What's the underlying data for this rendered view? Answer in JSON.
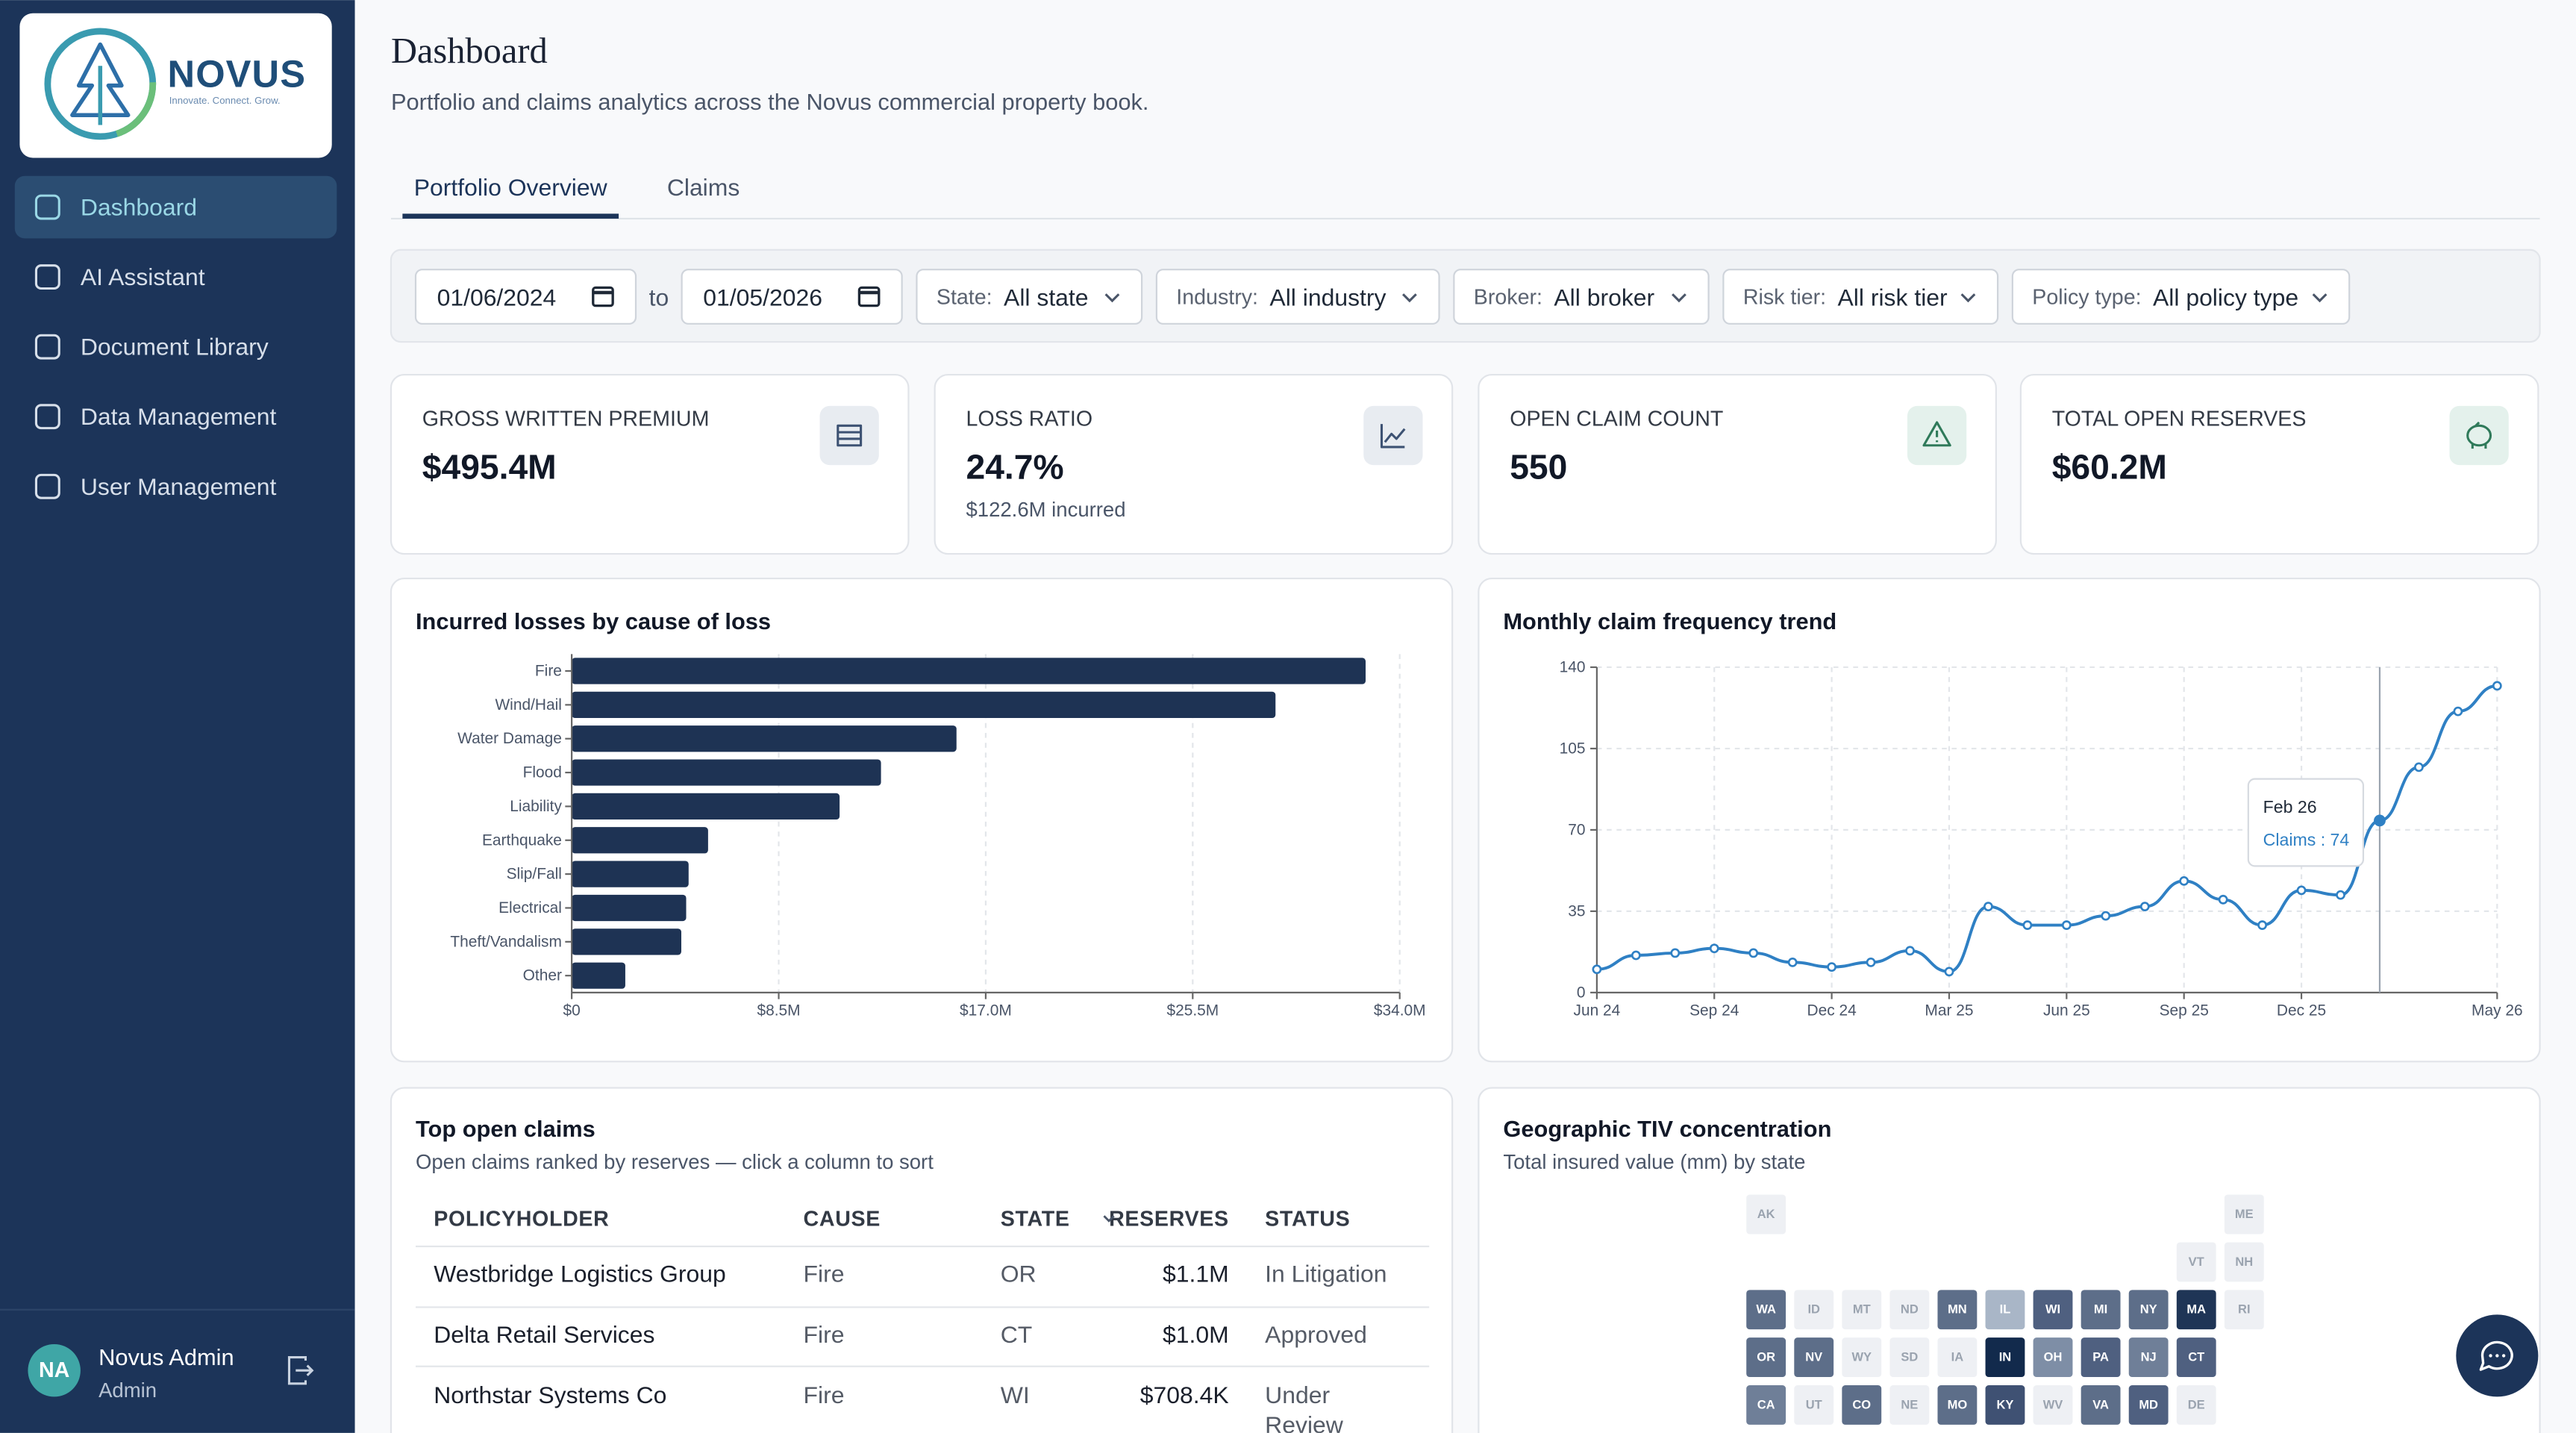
{
  "sidebar": {
    "logo": {
      "name": "NOVUS",
      "tagline": "Innovate. Connect. Grow."
    },
    "nav": [
      "Dashboard",
      "AI Assistant",
      "Document Library",
      "Data Management",
      "User Management"
    ],
    "user": {
      "initials": "NA",
      "name": "Novus Admin",
      "role": "Admin"
    }
  },
  "header": {
    "title": "Dashboard",
    "subtitle": "Portfolio and claims analytics across the Novus commercial property book."
  },
  "tabs": [
    "Portfolio Overview",
    "Claims"
  ],
  "filters": {
    "date_from": "01/06/2024",
    "date_separator": "to",
    "date_to": "01/05/2026",
    "selects": [
      {
        "label": "State:",
        "value": "All state"
      },
      {
        "label": "Industry:",
        "value": "All industry"
      },
      {
        "label": "Broker:",
        "value": "All broker"
      },
      {
        "label": "Risk tier:",
        "value": "All risk tier"
      },
      {
        "label": "Policy type:",
        "value": "All policy type"
      }
    ]
  },
  "kpis": [
    {
      "label": "GROSS WRITTEN PREMIUM",
      "value": "$495.4M"
    },
    {
      "label": "LOSS RATIO",
      "value": "24.7%",
      "note": "$122.6M incurred"
    },
    {
      "label": "OPEN CLAIM COUNT",
      "value": "550"
    },
    {
      "label": "TOTAL OPEN RESERVES",
      "value": "$60.2M"
    }
  ],
  "chart_data": [
    {
      "type": "bar",
      "orientation": "horizontal",
      "title": "Incurred losses by cause of loss",
      "categories": [
        "Fire",
        "Wind/Hail",
        "Water Damage",
        "Flood",
        "Liability",
        "Earthquake",
        "Slip/Fall",
        "Electrical",
        "Theft/Vandalism",
        "Other"
      ],
      "values": [
        32.6,
        28.9,
        15.8,
        12.7,
        11.0,
        5.6,
        4.8,
        4.7,
        4.5,
        2.2
      ],
      "color": "#1e3354",
      "xlim": [
        0,
        34
      ],
      "xticks": [
        {
          "value": 0,
          "label": "$0"
        },
        {
          "value": 8.5,
          "label": "$8.5M"
        },
        {
          "value": 17,
          "label": "$17.0M"
        },
        {
          "value": 25.5,
          "label": "$25.5M"
        },
        {
          "value": 34,
          "label": "$34.0M"
        }
      ],
      "grid": true
    },
    {
      "type": "line",
      "title": "Monthly claim frequency trend",
      "categories": [
        "Jun 24",
        null,
        null,
        "Sep 24",
        null,
        null,
        "Dec 24",
        null,
        null,
        "Mar 25",
        null,
        null,
        "Jun 25",
        null,
        null,
        "Sep 25",
        null,
        null,
        "Dec 25",
        null,
        null,
        null,
        null,
        "May 26"
      ],
      "values": [
        10,
        16,
        17,
        19,
        17,
        13,
        11,
        13,
        18,
        9,
        37,
        29,
        29,
        33,
        37,
        48,
        40,
        29,
        44,
        42,
        74,
        97,
        121,
        132
      ],
      "color": "#2f80c4",
      "ylim": [
        0,
        140
      ],
      "yticks": [
        0,
        35,
        70,
        105,
        140
      ],
      "grid": true,
      "tooltip": {
        "title": "Feb 26",
        "text": "Claims : 74"
      }
    }
  ],
  "claims_table": {
    "title": "Top open claims",
    "subtitle": "Open claims ranked by reserves — click a column to sort",
    "header": [
      "POLICYHOLDER",
      "CAUSE",
      "STATE",
      "RESERVES",
      "STATUS"
    ],
    "rows": [
      [
        "Westbridge Logistics Group",
        "Fire",
        "OR",
        "$1.1M",
        "In Litigation"
      ],
      [
        "Delta Retail Services",
        "Fire",
        "CT",
        "$1.0M",
        "Approved"
      ],
      [
        "Northstar Systems Co",
        "Fire",
        "WI",
        "$708.4K",
        "Under Review"
      ]
    ]
  },
  "geo": {
    "title": "Geographic TIV concentration",
    "subtitle": "Total insured value (mm) by state",
    "tiles": [
      {
        "state": "AK",
        "color": "#eef0f4"
      },
      {
        "state": "ME",
        "color": "#eef0f4"
      },
      {
        "state": "VT",
        "color": "#eef0f4"
      },
      {
        "state": "NH",
        "color": "#eef0f4"
      },
      {
        "state": "WA",
        "color": "#5d6e89"
      },
      {
        "state": "ID",
        "color": "#eef0f4"
      },
      {
        "state": "MT",
        "color": "#eef0f4"
      },
      {
        "state": "ND",
        "color": "#eef0f4"
      },
      {
        "state": "MN",
        "color": "#5d6e89"
      },
      {
        "state": "IL",
        "color": "#a9b6c7"
      },
      {
        "state": "WI",
        "color": "#4f6080"
      },
      {
        "state": "MI",
        "color": "#5d6e89"
      },
      {
        "state": "NY",
        "color": "#5d6e89"
      },
      {
        "state": "MA",
        "color": "#1f3556"
      },
      {
        "state": "RI",
        "color": "#eef0f4"
      },
      {
        "state": "OR",
        "color": "#5d6e89"
      },
      {
        "state": "NV",
        "color": "#5d6e89"
      },
      {
        "state": "WY",
        "color": "#eef0f4"
      },
      {
        "state": "SD",
        "color": "#eef0f4"
      },
      {
        "state": "IA",
        "color": "#eef0f4"
      },
      {
        "state": "IN",
        "color": "#122a4c"
      },
      {
        "state": "OH",
        "color": "#7e8ea6"
      },
      {
        "state": "PA",
        "color": "#4f6080"
      },
      {
        "state": "NJ",
        "color": "#6f7f98"
      },
      {
        "state": "CT",
        "color": "#4f6080"
      },
      {
        "state": "CA",
        "color": "#6f7f98"
      },
      {
        "state": "UT",
        "color": "#eef0f4"
      },
      {
        "state": "CO",
        "color": "#5d6e89"
      },
      {
        "state": "NE",
        "color": "#eef0f4"
      },
      {
        "state": "MO",
        "color": "#5d6e89"
      },
      {
        "state": "KY",
        "color": "#3f5173"
      },
      {
        "state": "WV",
        "color": "#eef0f4"
      },
      {
        "state": "VA",
        "color": "#5d6e89"
      },
      {
        "state": "MD",
        "color": "#4f6080"
      },
      {
        "state": "DE",
        "color": "#eef0f4"
      }
    ]
  }
}
